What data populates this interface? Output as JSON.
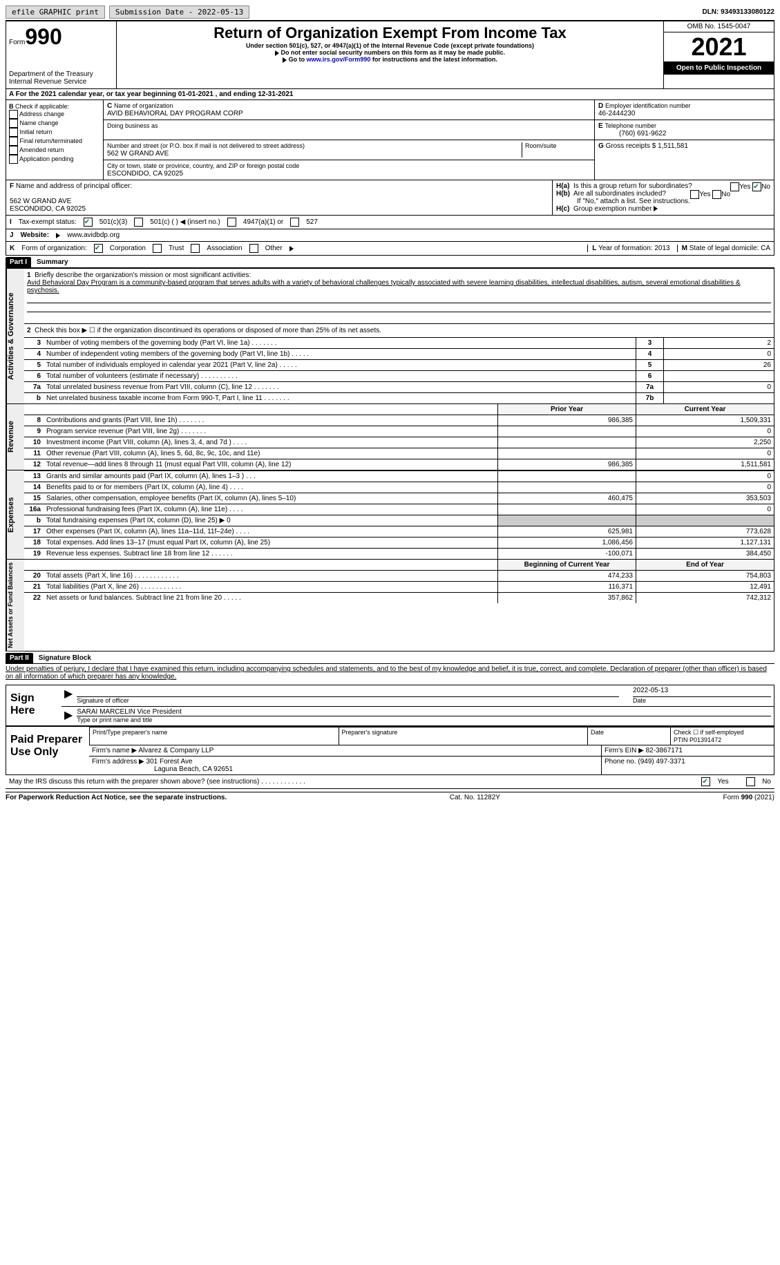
{
  "topbar": {
    "efile": "efile GRAPHIC print",
    "submission_label": "Submission Date - 2022-05-13",
    "dln_label": "DLN: 93493133080122"
  },
  "header": {
    "form": "Form",
    "form_num": "990",
    "dept": "Department of the Treasury",
    "irs": "Internal Revenue Service",
    "title": "Return of Organization Exempt From Income Tax",
    "sub1": "Under section 501(c), 527, or 4947(a)(1) of the Internal Revenue Code (except private foundations)",
    "sub2": "Do not enter social security numbers on this form as it may be made public.",
    "sub3_pre": "Go to ",
    "sub3_link": "www.irs.gov/Form990",
    "sub3_post": " for instructions and the latest information.",
    "omb": "OMB No. 1545-0047",
    "year": "2021",
    "inspect": "Open to Public Inspection"
  },
  "period": "For the 2021 calendar year, or tax year beginning 01-01-2021   , and ending 12-31-2021",
  "B": {
    "label": "Check if applicable:",
    "opts": [
      "Address change",
      "Name change",
      "Initial return",
      "Final return/terminated",
      "Amended return",
      "Application pending"
    ]
  },
  "C": {
    "name_label": "Name of organization",
    "name": "AVID BEHAVIORAL DAY PROGRAM CORP",
    "dba_label": "Doing business as",
    "street_label": "Number and street (or P.O. box if mail is not delivered to street address)",
    "room_label": "Room/suite",
    "street": "562 W GRAND AVE",
    "city_label": "City or town, state or province, country, and ZIP or foreign postal code",
    "city": "ESCONDIDO, CA  92025"
  },
  "D": {
    "label": "Employer identification number",
    "value": "46-2444230"
  },
  "E": {
    "label": "Telephone number",
    "value": "(760) 691-9622"
  },
  "G": {
    "label": "Gross receipts $ ",
    "value": "1,511,581"
  },
  "F": {
    "label": "Name and address of principal officer:",
    "addr1": "562 W GRAND AVE",
    "addr2": "ESCONDIDO, CA  92025"
  },
  "H": {
    "a": "Is this a group return for subordinates?",
    "b": "Are all subordinates included?",
    "b_note": "If \"No,\" attach a list. See instructions.",
    "c": "Group exemption number",
    "yes": "Yes",
    "no": "No"
  },
  "I": {
    "label": "Tax-exempt status:",
    "opts": [
      "501(c)(3)",
      "501(c) (  ) ◀ (insert no.)",
      "4947(a)(1) or",
      "527"
    ]
  },
  "J": {
    "label": "Website:",
    "value": "www.avidbdp.org"
  },
  "K": {
    "label": "Form of organization:",
    "opts": [
      "Corporation",
      "Trust",
      "Association",
      "Other"
    ]
  },
  "L": {
    "label": "Year of formation: ",
    "value": "2013"
  },
  "M": {
    "label": "State of legal domicile: ",
    "value": "CA"
  },
  "part1": {
    "hdr": "Part I",
    "title": "Summary",
    "mission_label": "Briefly describe the organization's mission or most significant activities:",
    "mission": "Avid Behavioral Day Program is a community-based program that serves adults with a variety of behavioral challenges typically associated with severe learning disabilities, intellectual disabilities, autism, several emotional disabilities & psychosis.",
    "line2": "Check this box ▶ ☐  if the organization discontinued its operations or disposed of more than 25% of its net assets.",
    "gov_lines": [
      {
        "n": "3",
        "t": "Number of voting members of the governing body (Part VI, line 1a)    .    .    .    .    .    .    .",
        "box": "3",
        "v": "2"
      },
      {
        "n": "4",
        "t": "Number of independent voting members of the governing body (Part VI, line 1b)  .    .    .    .    .",
        "box": "4",
        "v": "0"
      },
      {
        "n": "5",
        "t": "Total number of individuals employed in calendar year 2021 (Part V, line 2a)   .    .    .    .    .",
        "box": "5",
        "v": "26"
      },
      {
        "n": "6",
        "t": "Total number of volunteers (estimate if necessary)    .    .    .    .    .    .    .    .    .    .",
        "box": "6",
        "v": ""
      },
      {
        "n": "7a",
        "t": "Total unrelated business revenue from Part VIII, column (C), line 12   .    .    .    .    .    .    .",
        "box": "7a",
        "v": "0"
      },
      {
        "n": "b",
        "t": "Net unrelated business taxable income from Form 990-T, Part I, line 11  .    .    .    .    .    .    .",
        "box": "7b",
        "v": ""
      }
    ],
    "col_prior": "Prior Year",
    "col_curr": "Current Year",
    "rev_lines": [
      {
        "n": "8",
        "t": "Contributions and grants (Part VIII, line 1h)    .    .    .    .    .    .    .",
        "p": "986,385",
        "c": "1,509,331"
      },
      {
        "n": "9",
        "t": "Program service revenue (Part VIII, line 2g)    .    .    .    .    .    .    .",
        "p": "",
        "c": "0"
      },
      {
        "n": "10",
        "t": "Investment income (Part VIII, column (A), lines 3, 4, and 7d )   .    .    .    .",
        "p": "",
        "c": "2,250"
      },
      {
        "n": "11",
        "t": "Other revenue (Part VIII, column (A), lines 5, 6d, 8c, 9c, 10c, and 11e)",
        "p": "",
        "c": "0"
      },
      {
        "n": "12",
        "t": "Total revenue—add lines 8 through 11 (must equal Part VIII, column (A), line 12)",
        "p": "986,385",
        "c": "1,511,581"
      }
    ],
    "exp_lines": [
      {
        "n": "13",
        "t": "Grants and similar amounts paid (Part IX, column (A), lines 1–3 )  .    .    .",
        "p": "",
        "c": "0"
      },
      {
        "n": "14",
        "t": "Benefits paid to or for members (Part IX, column (A), line 4)  .    .    .    .",
        "p": "",
        "c": "0"
      },
      {
        "n": "15",
        "t": "Salaries, other compensation, employee benefits (Part IX, column (A), lines 5–10)",
        "p": "460,475",
        "c": "353,503"
      },
      {
        "n": "16a",
        "t": "Professional fundraising fees (Part IX, column (A), line 11e)   .    .    .    .",
        "p": "",
        "c": "0"
      },
      {
        "n": "b",
        "t": "Total fundraising expenses (Part IX, column (D), line 25) ▶ 0",
        "p": "gray",
        "c": "gray"
      },
      {
        "n": "17",
        "t": "Other expenses (Part IX, column (A), lines 11a–11d, 11f–24e)   .    .    .    .",
        "p": "625,981",
        "c": "773,628"
      },
      {
        "n": "18",
        "t": "Total expenses. Add lines 13–17 (must equal Part IX, column (A), line 25)",
        "p": "1,086,456",
        "c": "1,127,131"
      },
      {
        "n": "19",
        "t": "Revenue less expenses. Subtract line 18 from line 12  .    .    .    .    .    .",
        "p": "-100,071",
        "c": "384,450"
      }
    ],
    "col_beg": "Beginning of Current Year",
    "col_end": "End of Year",
    "net_lines": [
      {
        "n": "20",
        "t": "Total assets (Part X, line 16)  .    .    .    .    .    .    .    .    .    .    .    .",
        "p": "474,233",
        "c": "754,803"
      },
      {
        "n": "21",
        "t": "Total liabilities (Part X, line 26)  .    .    .    .    .    .    .    .    .    .    .",
        "p": "116,371",
        "c": "12,491"
      },
      {
        "n": "22",
        "t": "Net assets or fund balances. Subtract line 21 from line 20   .    .    .    .    .",
        "p": "357,862",
        "c": "742,312"
      }
    ]
  },
  "part2": {
    "hdr": "Part II",
    "title": "Signature Block",
    "decl": "Under penalties of perjury, I declare that I have examined this return, including accompanying schedules and statements, and to the best of my knowledge and belief, it is true, correct, and complete. Declaration of preparer (other than officer) is based on all information of which preparer has any knowledge."
  },
  "sign": {
    "label": "Sign Here",
    "sig_of": "Signature of officer",
    "date": "Date",
    "date_val": "2022-05-13",
    "name": "SARAI MARCELIN  Vice President",
    "name_label": "Type or print name and title"
  },
  "prep": {
    "label": "Paid Preparer Use Only",
    "c1": "Print/Type preparer's name",
    "c2": "Preparer's signature",
    "c3": "Date",
    "c4a": "Check ☐ if self-employed",
    "c4b": "PTIN",
    "ptin": "P01391472",
    "firm_name_label": "Firm's name      ▶ ",
    "firm_name": "Alvarez & Company LLP",
    "firm_ein_label": "Firm's EIN ▶ ",
    "firm_ein": "82-3867171",
    "firm_addr_label": "Firm's address ▶ ",
    "firm_addr1": "301 Forest Ave",
    "firm_addr2": "Laguna Beach, CA  92651",
    "phone_label": "Phone no. ",
    "phone": "(949) 497-3371"
  },
  "discuss": "May the IRS discuss this return with the preparer shown above? (see instructions)   .    .    .    .    .    .    .    .    .    .    .    .",
  "footer": {
    "left": "For Paperwork Reduction Act Notice, see the separate instructions.",
    "mid": "Cat. No. 11282Y",
    "right": "Form 990 (2021)"
  },
  "vtabs": {
    "gov": "Activities & Governance",
    "rev": "Revenue",
    "exp": "Expenses",
    "net": "Net Assets or Fund Balances"
  }
}
